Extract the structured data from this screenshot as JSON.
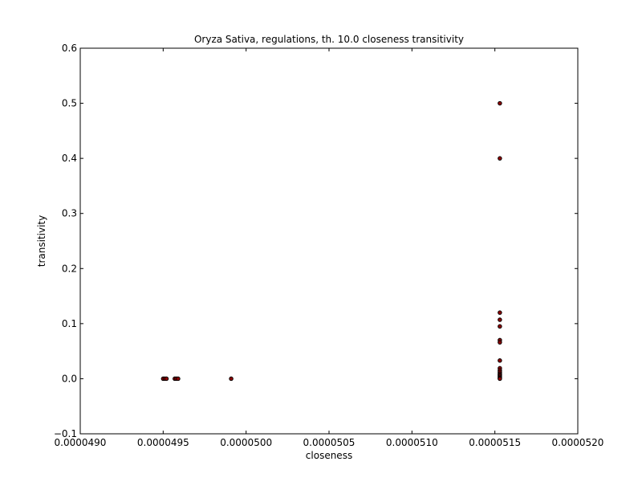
{
  "chart_data": {
    "type": "scatter",
    "title": "Oryza Sativa, regulations, th. 10.0 closeness transitivity",
    "xlabel": "closeness",
    "ylabel": "transitivity",
    "xlim": [
      4.9e-05,
      5.2e-05
    ],
    "ylim": [
      -0.1,
      0.6
    ],
    "x_ticks": [
      4.9e-05,
      4.95e-05,
      5e-05,
      5.05e-05,
      5.1e-05,
      5.15e-05,
      5.2e-05
    ],
    "x_tick_labels": [
      "0.0000490",
      "0.0000495",
      "0.0000500",
      "0.0000505",
      "0.0000510",
      "0.0000515",
      "0.0000520"
    ],
    "y_ticks": [
      -0.1,
      0.0,
      0.1,
      0.2,
      0.3,
      0.4,
      0.5,
      0.6
    ],
    "y_tick_labels": [
      "−0.1",
      "0.0",
      "0.1",
      "0.2",
      "0.3",
      "0.4",
      "0.5",
      "0.6"
    ],
    "grid": false,
    "marker_color": "#8b0000",
    "marker_edge_color": "#000000",
    "series": [
      {
        "x": [
          4.95e-05,
          4.951e-05,
          4.952e-05,
          4.957e-05,
          4.958e-05,
          4.959e-05,
          4.991e-05,
          5.153e-05,
          5.153e-05,
          5.153e-05,
          5.153e-05,
          5.153e-05,
          5.153e-05,
          5.153e-05,
          5.153e-05,
          5.153e-05,
          5.153e-05,
          5.153e-05,
          5.153e-05,
          5.153e-05,
          5.153e-05,
          5.153e-05,
          5.153e-05,
          5.153e-05
        ],
        "y": [
          0.0,
          0.0,
          0.0,
          0.0,
          0.0,
          0.0,
          0.0,
          0.5,
          0.4,
          0.12,
          0.107,
          0.095,
          0.07,
          0.066,
          0.033,
          0.019,
          0.015,
          0.012,
          0.009,
          0.007,
          0.005,
          0.003,
          0.001,
          0.0
        ]
      }
    ]
  }
}
